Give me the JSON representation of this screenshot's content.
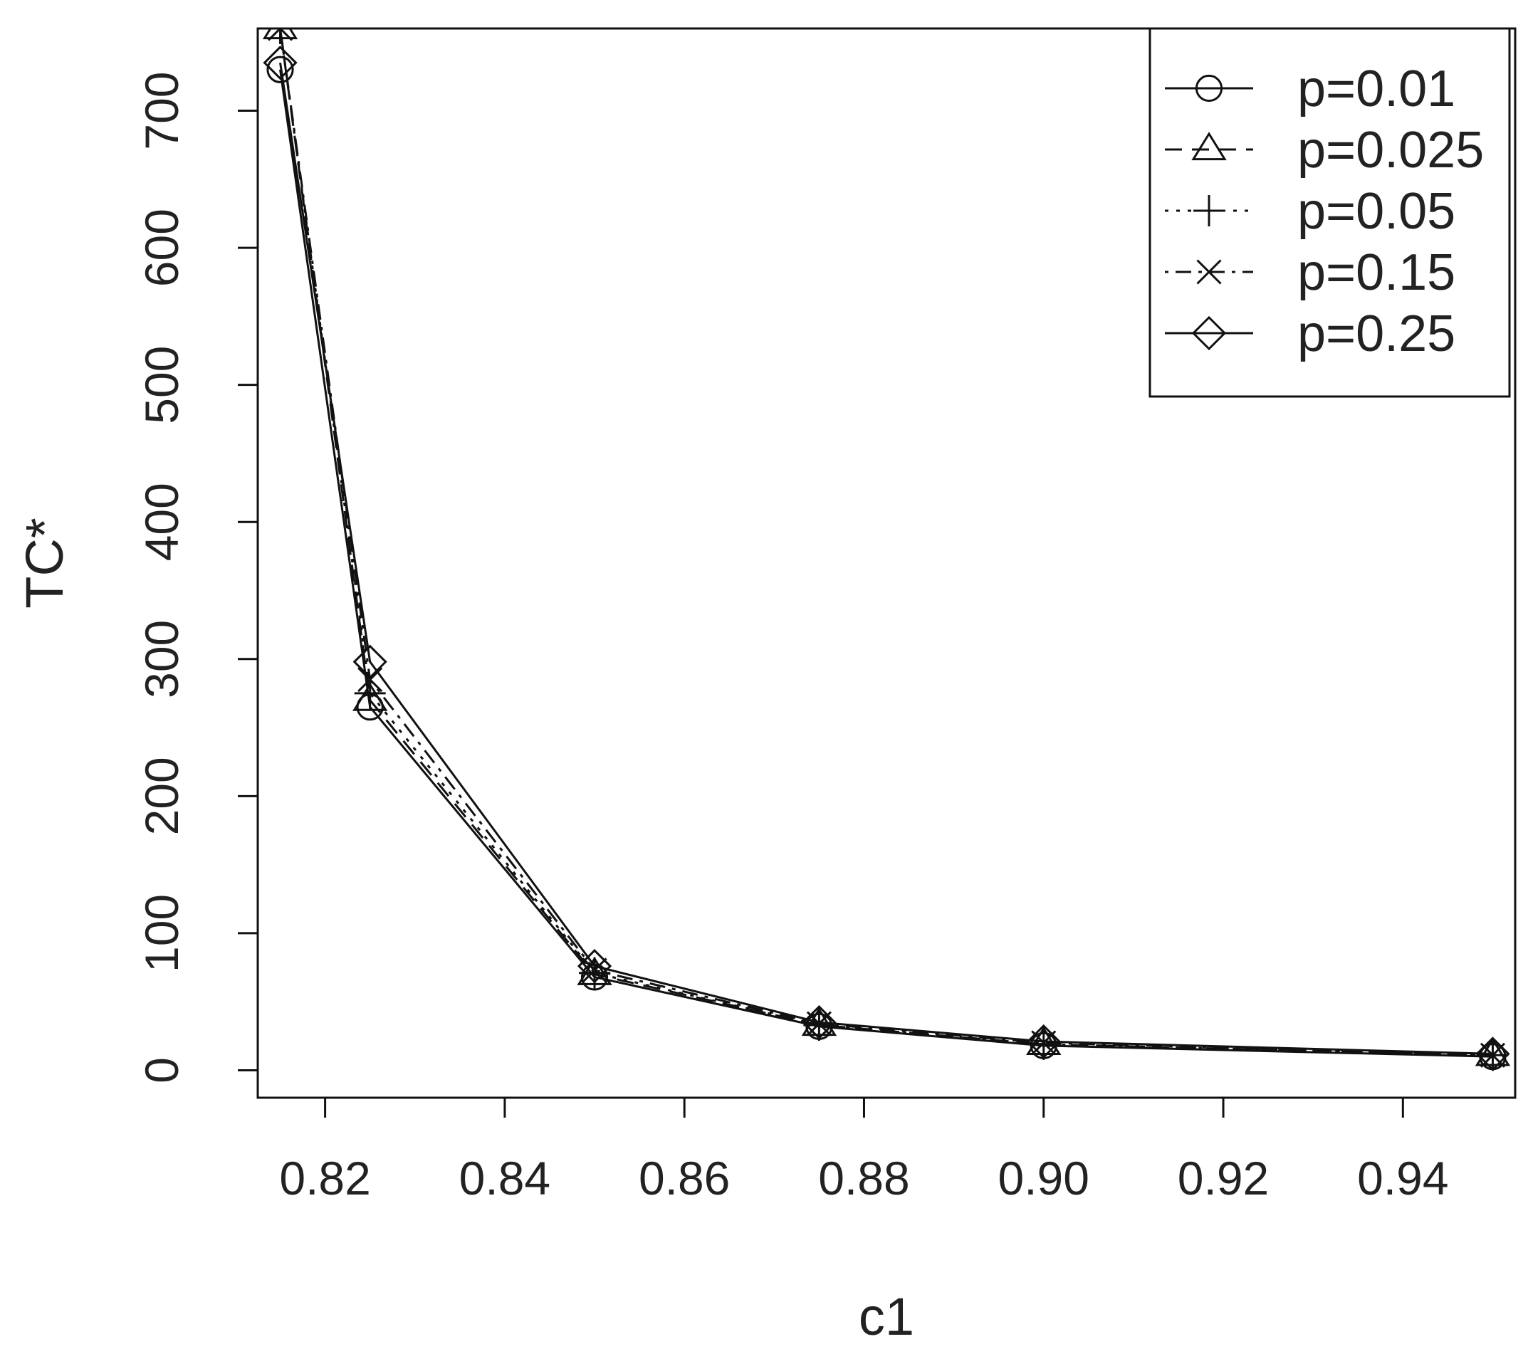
{
  "chart_data": {
    "type": "line",
    "title": "",
    "xlabel": "c1",
    "ylabel": "TC*",
    "xlim": [
      0.8125,
      0.9525
    ],
    "ylim": [
      -20,
      760
    ],
    "x_ticks": [
      0.82,
      0.84,
      0.86,
      0.88,
      0.9,
      0.92,
      0.94
    ],
    "x_tick_labels": [
      "0.82",
      "0.84",
      "0.86",
      "0.88",
      "0.90",
      "0.92",
      "0.94"
    ],
    "y_ticks": [
      0,
      100,
      200,
      300,
      400,
      500,
      600,
      700
    ],
    "y_tick_labels": [
      "0",
      "100",
      "200",
      "300",
      "400",
      "500",
      "600",
      "700"
    ],
    "grid": false,
    "legend_position": "top-right",
    "x": [
      0.815,
      0.825,
      0.85,
      0.875,
      0.9,
      0.95
    ],
    "series": [
      {
        "name": "p=0.01",
        "marker": "circle",
        "dash": "solid",
        "values": [
          730,
          265,
          68,
          32,
          18,
          10
        ]
      },
      {
        "name": "p=0.025",
        "marker": "triangle",
        "dash": "dashed",
        "values": [
          760,
          270,
          70,
          33,
          19,
          11
        ]
      },
      {
        "name": "p=0.05",
        "marker": "plus",
        "dash": "dotted",
        "values": [
          760,
          275,
          71,
          33,
          19,
          11
        ]
      },
      {
        "name": "p=0.15",
        "marker": "cross",
        "dash": "dotdash",
        "values": [
          760,
          285,
          73,
          34,
          20,
          11
        ]
      },
      {
        "name": "p=0.25",
        "marker": "diamond",
        "dash": "solid",
        "values": [
          735,
          298,
          76,
          35,
          21,
          12
        ]
      }
    ]
  }
}
